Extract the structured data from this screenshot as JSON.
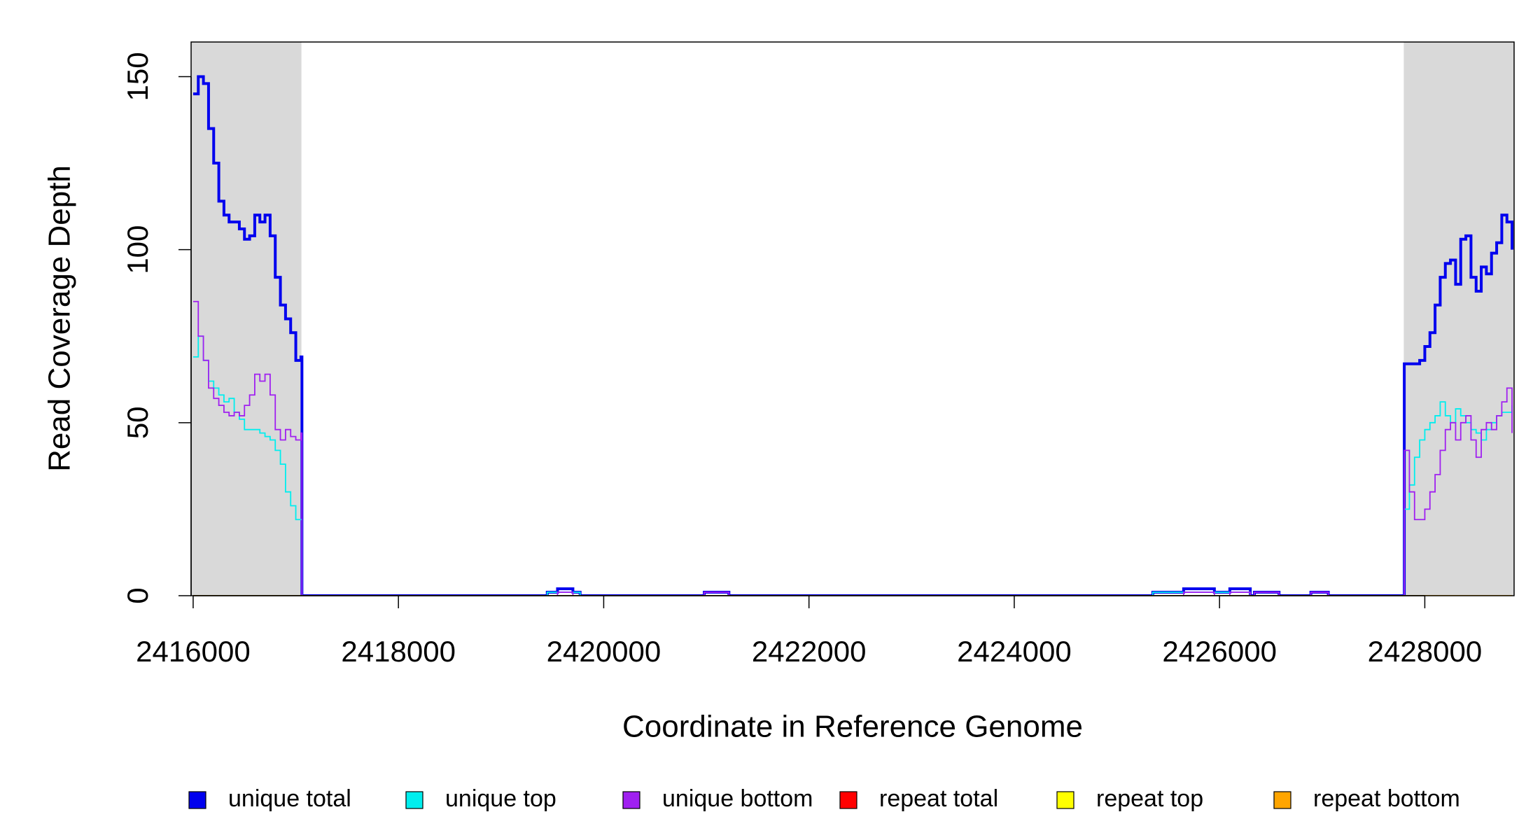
{
  "chart_data": {
    "type": "line",
    "step": true,
    "xlabel": "Coordinate in Reference Genome",
    "ylabel": "Read Coverage Depth",
    "xlim": [
      2415980,
      2428870
    ],
    "ylim": [
      0,
      160
    ],
    "xticks": [
      2416000,
      2418000,
      2420000,
      2422000,
      2424000,
      2426000,
      2428000
    ],
    "yticks": [
      0,
      50,
      100,
      150
    ],
    "shaded_regions": [
      [
        2415980,
        2417055
      ],
      [
        2427795,
        2428870
      ]
    ],
    "shade_color": "#d9d9d9",
    "legend": "bottom",
    "x": [
      2416000,
      2416050,
      2416100,
      2416150,
      2416200,
      2416250,
      2416300,
      2416350,
      2416400,
      2416450,
      2416500,
      2416550,
      2416600,
      2416650,
      2416700,
      2416750,
      2416800,
      2416850,
      2416900,
      2416950,
      2417000,
      2417050,
      2417060,
      2419450,
      2419550,
      2419700,
      2419770,
      2420980,
      2421220,
      2425350,
      2425650,
      2425950,
      2426100,
      2426300,
      2426340,
      2426580,
      2426890,
      2427060,
      2427790,
      2427800,
      2427850,
      2427900,
      2427950,
      2428000,
      2428050,
      2428100,
      2428150,
      2428200,
      2428250,
      2428300,
      2428350,
      2428400,
      2428450,
      2428500,
      2428550,
      2428600,
      2428650,
      2428700,
      2428750,
      2428800,
      2428850
    ],
    "series": [
      {
        "name": "unique total",
        "color": "#0000ee",
        "values": [
          145,
          150,
          148,
          135,
          125,
          114,
          110,
          108,
          108,
          106,
          103,
          104,
          110,
          108,
          110,
          104,
          92,
          84,
          80,
          76,
          68,
          69,
          0,
          1,
          2,
          1,
          0,
          1,
          0,
          1,
          2,
          1,
          2,
          0,
          1,
          0,
          1,
          0,
          0,
          67,
          67,
          67,
          68,
          72,
          76,
          84,
          92,
          96,
          97,
          90,
          103,
          104,
          92,
          88,
          95,
          93,
          99,
          102,
          110,
          108,
          100
        ]
      },
      {
        "name": "unique top",
        "color": "#00eeee",
        "values": [
          69,
          75,
          68,
          62,
          60,
          58,
          56,
          57,
          53,
          51,
          48,
          48,
          48,
          47,
          46,
          45,
          42,
          38,
          30,
          26,
          22,
          22,
          0,
          1,
          1,
          1,
          0,
          0,
          0,
          1,
          1,
          1,
          1,
          0,
          0,
          0,
          0,
          0,
          0,
          25,
          32,
          40,
          45,
          48,
          50,
          52,
          56,
          52,
          50,
          54,
          52,
          50,
          48,
          47,
          45,
          48,
          50,
          52,
          53,
          53,
          55
        ]
      },
      {
        "name": "unique bottom",
        "color": "#a020f0",
        "values": [
          85,
          75,
          68,
          60,
          57,
          55,
          53,
          52,
          53,
          52,
          55,
          58,
          64,
          62,
          64,
          58,
          48,
          45,
          48,
          46,
          45,
          47,
          0,
          0,
          1,
          0,
          0,
          1,
          0,
          0,
          1,
          0,
          1,
          0,
          1,
          0,
          1,
          0,
          0,
          42,
          30,
          22,
          22,
          25,
          30,
          35,
          42,
          48,
          50,
          45,
          50,
          52,
          45,
          40,
          48,
          50,
          48,
          52,
          56,
          60,
          47
        ]
      },
      {
        "name": "repeat total",
        "color": "#ff0000",
        "values": [
          0,
          0,
          0,
          0,
          0,
          0,
          0,
          0,
          0,
          0,
          0,
          0,
          0,
          0,
          0,
          0,
          0,
          0,
          0,
          0,
          0,
          0,
          0,
          0,
          0,
          0,
          0,
          0,
          0,
          0,
          0,
          0,
          0,
          0,
          0,
          0,
          0,
          0,
          0,
          0,
          0,
          0,
          0,
          0,
          0,
          0,
          0,
          0,
          0,
          0,
          0,
          0,
          0,
          0,
          0,
          0,
          0,
          0,
          0,
          0,
          0
        ]
      },
      {
        "name": "repeat top",
        "color": "#ffff00",
        "values": [
          0,
          0,
          0,
          0,
          0,
          0,
          0,
          0,
          0,
          0,
          0,
          0,
          0,
          0,
          0,
          0,
          0,
          0,
          0,
          0,
          0,
          0,
          0,
          0,
          0,
          0,
          0,
          0,
          0,
          0,
          0,
          0,
          0,
          0,
          0,
          0,
          0,
          0,
          0,
          0,
          0,
          0,
          0,
          0,
          0,
          0,
          0,
          0,
          0,
          0,
          0,
          0,
          0,
          0,
          0,
          0,
          0,
          0,
          0,
          0,
          0
        ]
      },
      {
        "name": "repeat bottom",
        "color": "#ffa500",
        "values": [
          0,
          0,
          0,
          0,
          0,
          0,
          0,
          0,
          0,
          0,
          0,
          0,
          0,
          0,
          0,
          0,
          0,
          0,
          0,
          0,
          0,
          0,
          0,
          0,
          0,
          0,
          0,
          0,
          0,
          0,
          0,
          0,
          0,
          0,
          0,
          0,
          0,
          0,
          0,
          0,
          0,
          0,
          0,
          0,
          0,
          0,
          0,
          0,
          0,
          0,
          0,
          0,
          0,
          0,
          0,
          0,
          0,
          0,
          0,
          0,
          0
        ]
      }
    ]
  }
}
